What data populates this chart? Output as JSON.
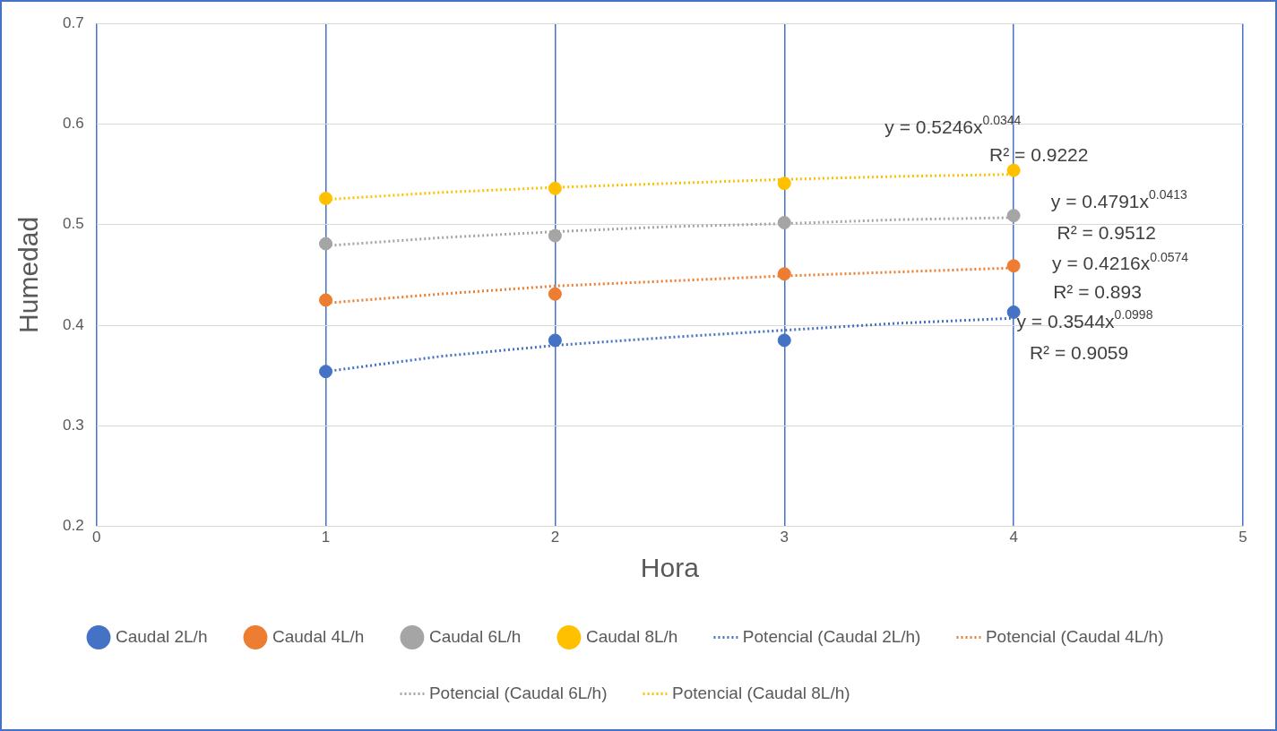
{
  "chart_data": {
    "type": "scatter",
    "xlabel": "Hora",
    "ylabel": "Humedad",
    "xlim": [
      0,
      5
    ],
    "xticks": [
      0,
      1,
      2,
      3,
      4,
      5
    ],
    "ylim": [
      0.2,
      0.7
    ],
    "yticks": [
      0.2,
      0.3,
      0.4,
      0.5,
      0.6,
      0.7
    ],
    "grid": true,
    "legend": "bottom",
    "x": [
      1,
      2,
      3,
      4
    ],
    "series": [
      {
        "name": "Caudal 2L/h",
        "marker": "circle",
        "color": "#4472c4",
        "values": [
          0.354,
          0.385,
          0.385,
          0.413
        ]
      },
      {
        "name": "Caudal 4L/h",
        "marker": "circle",
        "color": "#ed7d31",
        "values": [
          0.425,
          0.431,
          0.451,
          0.459
        ]
      },
      {
        "name": "Caudal 6L/h",
        "marker": "circle",
        "color": "#a5a5a5",
        "values": [
          0.481,
          0.489,
          0.502,
          0.509
        ]
      },
      {
        "name": "Caudal 8L/h",
        "marker": "circle",
        "color": "#ffc000",
        "values": [
          0.526,
          0.536,
          0.541,
          0.554
        ]
      },
      {
        "name": "Potencial (Caudal 2L/h)",
        "type": "line",
        "line_style": "dotted",
        "marker": "none",
        "color": "#4472c4",
        "x": [
          1,
          1.5,
          2,
          2.5,
          3,
          3.5,
          4
        ],
        "values": [
          0.354,
          0.369,
          0.38,
          0.388,
          0.395,
          0.402,
          0.407
        ]
      },
      {
        "name": "Potencial (Caudal 4L/h)",
        "type": "line",
        "line_style": "dotted",
        "marker": "none",
        "color": "#ed7d31",
        "x": [
          1,
          1.5,
          2,
          2.5,
          3,
          3.5,
          4
        ],
        "values": [
          0.422,
          0.431,
          0.439,
          0.444,
          0.449,
          0.453,
          0.457
        ]
      },
      {
        "name": "Potencial (Caudal 6L/h)",
        "type": "line",
        "line_style": "dotted",
        "marker": "none",
        "color": "#a5a5a5",
        "x": [
          1,
          1.5,
          2,
          2.5,
          3,
          3.5,
          4
        ],
        "values": [
          0.479,
          0.487,
          0.493,
          0.498,
          0.501,
          0.505,
          0.507
        ]
      },
      {
        "name": "Potencial (Caudal 8L/h)",
        "type": "line",
        "line_style": "dotted",
        "marker": "none",
        "color": "#ffc000",
        "x": [
          1,
          1.5,
          2,
          2.5,
          3,
          3.5,
          4
        ],
        "values": [
          0.525,
          0.532,
          0.537,
          0.541,
          0.545,
          0.548,
          0.55
        ]
      }
    ],
    "annotations": [
      "y = 0.5246x$^{0.0344}$",
      "R² = 0.9222",
      "y = 0.4791x$^{0.0413}$",
      "R² = 0.9512",
      "y = 0.4216x$^{0.0574}$",
      "R² = 0.893",
      "y = 0.3544x$^{0.0998}$",
      "R² = 0.9059"
    ]
  }
}
